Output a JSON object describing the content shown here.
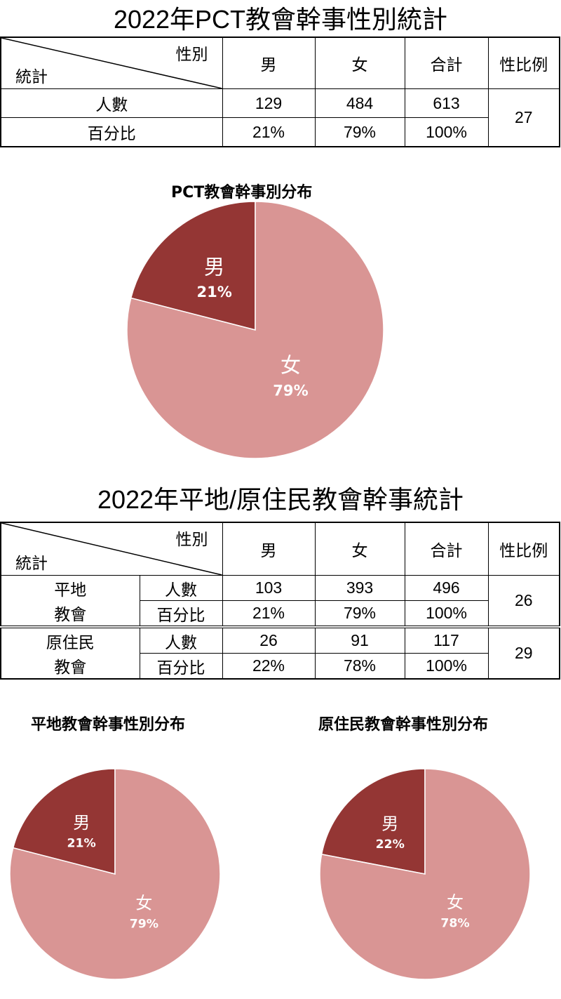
{
  "table1": {
    "title": "2022年PCT教會幹事性別統計",
    "corner_top": "性別",
    "corner_bottom": "統計",
    "headers": [
      "男",
      "女",
      "合計",
      "性比例"
    ],
    "rows": [
      {
        "label": "人數",
        "values": [
          "129",
          "484",
          "613"
        ]
      },
      {
        "label": "百分比",
        "values": [
          "21%",
          "79%",
          "100%"
        ]
      }
    ],
    "ratio": "27"
  },
  "table2": {
    "title": "2022年平地/原住民教會幹事統計",
    "corner_top": "性別",
    "corner_bottom": "統計",
    "headers": [
      "男",
      "女",
      "合計",
      "性比例"
    ],
    "groups": [
      {
        "name_line1": "平地",
        "name_line2": "教會",
        "rows": [
          {
            "label": "人數",
            "values": [
              "103",
              "393",
              "496"
            ]
          },
          {
            "label": "百分比",
            "values": [
              "21%",
              "79%",
              "100%"
            ]
          }
        ],
        "ratio": "26"
      },
      {
        "name_line1": "原住民",
        "name_line2": "教會",
        "rows": [
          {
            "label": "人數",
            "values": [
              "26",
              "91",
              "117"
            ]
          },
          {
            "label": "百分比",
            "values": [
              "22%",
              "78%",
              "100%"
            ]
          }
        ],
        "ratio": "29"
      }
    ]
  },
  "colors": {
    "male": "#943634",
    "female": "#D99594",
    "label": "#FFFFFF"
  },
  "chart_data": [
    {
      "type": "pie",
      "title": "PCT教會幹事別分布",
      "categories": [
        "男",
        "女"
      ],
      "values": [
        21,
        79
      ],
      "labels": [
        "21%",
        "79%"
      ],
      "colors": [
        "#943634",
        "#D99594"
      ]
    },
    {
      "type": "pie",
      "title": "平地教會幹事性別分布",
      "categories": [
        "男",
        "女"
      ],
      "values": [
        21,
        79
      ],
      "labels": [
        "21%",
        "79%"
      ],
      "colors": [
        "#943634",
        "#D99594"
      ]
    },
    {
      "type": "pie",
      "title": "原住民教會幹事性別分布",
      "categories": [
        "男",
        "女"
      ],
      "values": [
        22,
        78
      ],
      "labels": [
        "22%",
        "78%"
      ],
      "colors": [
        "#943634",
        "#D99594"
      ]
    }
  ]
}
